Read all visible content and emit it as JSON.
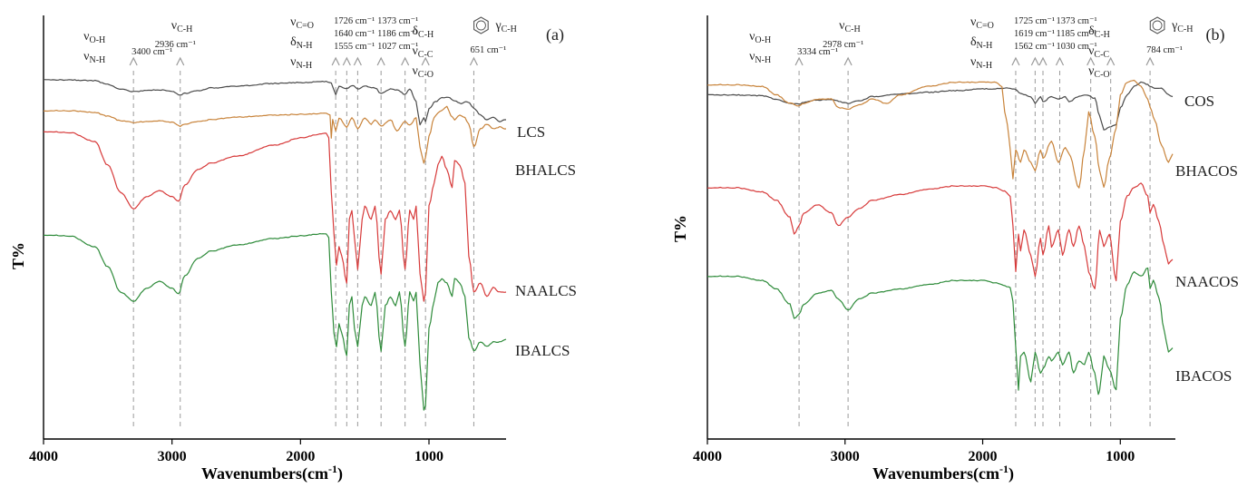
{
  "chart_data": [
    {
      "type": "line",
      "panel_label": "(a)",
      "xlabel": "Wavenumbers(cm",
      "xlabel_sup": "-1",
      "xlabel_close": ")",
      "ylabel": "T%",
      "xlim": [
        4000,
        400
      ],
      "xticks": [
        "4000",
        "3000",
        "2000",
        "1000"
      ],
      "xtick_values": [
        4000,
        3000,
        2000,
        1000
      ],
      "grid": false,
      "series": [
        {
          "name": "LCS",
          "color": "#4a4a4a",
          "x": [
            4000,
            3800,
            3600,
            3500,
            3400,
            3300,
            3200,
            3100,
            3000,
            2936,
            2900,
            2800,
            2700,
            2500,
            2200,
            2000,
            1800,
            1760,
            1726,
            1700,
            1640,
            1600,
            1555,
            1500,
            1420,
            1373,
            1300,
            1250,
            1186,
            1150,
            1100,
            1070,
            1040,
            1027,
            1000,
            950,
            900,
            850,
            800,
            750,
            700,
            651,
            600,
            550,
            500,
            450,
            400
          ],
          "y": [
            -6,
            -6,
            -7,
            -11,
            -16,
            -19,
            -18,
            -17,
            -19,
            -23,
            -21,
            -18,
            -15,
            -13,
            -10,
            -9,
            -8,
            -9,
            -22,
            -13,
            -16,
            -12,
            -16,
            -13,
            -15,
            -21,
            -16,
            -17,
            -22,
            -16,
            -30,
            -56,
            -48,
            -52,
            -38,
            -30,
            -26,
            -25,
            -29,
            -32,
            -30,
            -37,
            -45,
            -50,
            -47,
            -52,
            -50
          ]
        },
        {
          "name": "BHALCS",
          "color": "#c8833a",
          "x": [
            4000,
            3800,
            3600,
            3500,
            3400,
            3300,
            3200,
            3100,
            3000,
            2936,
            2900,
            2800,
            2700,
            2500,
            2200,
            2000,
            1800,
            1770,
            1760,
            1750,
            1726,
            1700,
            1640,
            1600,
            1555,
            1500,
            1450,
            1420,
            1373,
            1300,
            1250,
            1186,
            1150,
            1100,
            1070,
            1040,
            1027,
            1000,
            960,
            930,
            900,
            860,
            830,
            800,
            760,
            720,
            690,
            651,
            600,
            550,
            500,
            450,
            400
          ],
          "y": [
            -40,
            -40,
            -42,
            -46,
            -51,
            -53,
            -52,
            -51,
            -53,
            -57,
            -55,
            -52,
            -50,
            -47,
            -45,
            -44,
            -43,
            -45,
            -70,
            -50,
            -62,
            -48,
            -58,
            -48,
            -60,
            -48,
            -55,
            -50,
            -57,
            -50,
            -62,
            -52,
            -56,
            -48,
            -80,
            -98,
            -92,
            -68,
            -48,
            -42,
            -40,
            -35,
            -45,
            -50,
            -45,
            -48,
            -55,
            -80,
            -60,
            -55,
            -60,
            -58,
            -60
          ]
        },
        {
          "name": "NAALCS",
          "color": "#d73a3a",
          "x": [
            4000,
            3800,
            3600,
            3500,
            3400,
            3300,
            3200,
            3100,
            3000,
            2950,
            2900,
            2800,
            2700,
            2500,
            2200,
            2000,
            1850,
            1800,
            1780,
            1760,
            1740,
            1720,
            1700,
            1680,
            1640,
            1620,
            1600,
            1580,
            1555,
            1520,
            1500,
            1450,
            1420,
            1373,
            1340,
            1300,
            1260,
            1230,
            1186,
            1150,
            1120,
            1100,
            1070,
            1040,
            1027,
            1000,
            960,
            930,
            900,
            860,
            820,
            800,
            760,
            720,
            690,
            651,
            600,
            550,
            500,
            450,
            400
          ],
          "y": [
            -63,
            -64,
            -74,
            -100,
            -130,
            -148,
            -135,
            -128,
            -135,
            -140,
            -122,
            -105,
            -98,
            -90,
            -78,
            -70,
            -66,
            -65,
            -70,
            -130,
            -175,
            -210,
            -190,
            -200,
            -230,
            -160,
            -150,
            -180,
            -215,
            -160,
            -145,
            -160,
            -145,
            -220,
            -160,
            -150,
            -160,
            -150,
            -215,
            -150,
            -160,
            -145,
            -220,
            -250,
            -240,
            -145,
            -120,
            -100,
            -90,
            -105,
            -125,
            -95,
            -100,
            -120,
            -200,
            -240,
            -230,
            -245,
            -235,
            -240,
            -240
          ]
        },
        {
          "name": "IBALCS",
          "color": "#2e8b3a",
          "x": [
            4000,
            3800,
            3600,
            3500,
            3400,
            3300,
            3200,
            3100,
            3000,
            2950,
            2900,
            2800,
            2700,
            2500,
            2200,
            2000,
            1850,
            1800,
            1780,
            1760,
            1740,
            1720,
            1700,
            1680,
            1640,
            1620,
            1600,
            1580,
            1555,
            1520,
            1500,
            1450,
            1420,
            1373,
            1340,
            1300,
            1260,
            1230,
            1186,
            1150,
            1120,
            1100,
            1070,
            1040,
            1027,
            1000,
            960,
            930,
            900,
            860,
            820,
            800,
            760,
            720,
            690,
            651,
            600,
            550,
            500,
            450,
            400
          ],
          "y": [
            -177,
            -178,
            -190,
            -212,
            -240,
            -250,
            -236,
            -228,
            -236,
            -242,
            -222,
            -203,
            -195,
            -188,
            -181,
            -178,
            -176,
            -176,
            -180,
            -240,
            -285,
            -300,
            -275,
            -285,
            -310,
            -255,
            -245,
            -280,
            -300,
            -255,
            -245,
            -255,
            -240,
            -305,
            -255,
            -245,
            -255,
            -240,
            -300,
            -240,
            -250,
            -240,
            -320,
            -370,
            -365,
            -280,
            -250,
            -230,
            -225,
            -230,
            -245,
            -225,
            -230,
            -245,
            -290,
            -305,
            -295,
            -300,
            -295,
            -295,
            -292
          ]
        }
      ],
      "annotations": [
        {
          "x": 3300,
          "lines": [
            "νO-H",
            "νN-H"
          ],
          "wn": "3400 cm⁻¹",
          "left_labels": true
        },
        {
          "x": 2936,
          "lines": [
            "νC-H"
          ],
          "wn": "2936 cm⁻¹"
        },
        {
          "x": 1726,
          "lines": [
            "νC=O",
            "δN-H",
            "νN-H"
          ],
          "wn_block": [
            "1726 cm⁻¹",
            "1640 cm⁻¹",
            "1555 cm⁻¹"
          ]
        },
        {
          "x": 1640
        },
        {
          "x": 1555
        },
        {
          "x": 1373,
          "wn_block": [
            "1373 cm⁻¹",
            "1186 cm⁻¹",
            "1027 cm⁻¹"
          ]
        },
        {
          "x": 1186
        },
        {
          "x": 1027
        },
        {
          "x": 651,
          "lines": [
            "δC-H",
            "νC-C",
            "νC-O"
          ],
          "ring": true,
          "gamma": "γC-H",
          "wn": "651 cm⁻¹"
        }
      ]
    },
    {
      "type": "line",
      "panel_label": "(b)",
      "xlabel": "Wavenumbers(cm",
      "xlabel_sup": "-1",
      "xlabel_close": ")",
      "ylabel": "T%",
      "xlim": [
        4000,
        600
      ],
      "xticks": [
        "4000",
        "3000",
        "2000",
        "1000"
      ],
      "xtick_values": [
        4000,
        3000,
        2000,
        1000
      ],
      "grid": false,
      "series": [
        {
          "name": "COS",
          "color": "#4a4a4a",
          "x": [
            4000,
            3800,
            3600,
            3500,
            3400,
            3334,
            3300,
            3200,
            3100,
            2978,
            2900,
            2800,
            2600,
            2400,
            2200,
            2000,
            1800,
            1760,
            1725,
            1700,
            1650,
            1619,
            1580,
            1562,
            1500,
            1450,
            1400,
            1373,
            1300,
            1250,
            1185,
            1150,
            1120,
            1080,
            1030,
            1000,
            950,
            900,
            850,
            800,
            784,
            750,
            700,
            650,
            620
          ],
          "y": [
            -20,
            -20,
            -21,
            -25,
            -30,
            -31,
            -29,
            -26,
            -26,
            -30,
            -27,
            -22,
            -19,
            -17,
            -15,
            -13,
            -12,
            -14,
            -18,
            -20,
            -22,
            -30,
            -22,
            -28,
            -22,
            -25,
            -22,
            -28,
            -22,
            -20,
            -24,
            -45,
            -62,
            -58,
            -55,
            -35,
            -20,
            -10,
            -5,
            -8,
            -10,
            -12,
            -12,
            -20,
            -22
          ]
        },
        {
          "name": "BHACOS",
          "color": "#c8833a",
          "x": [
            4000,
            3800,
            3600,
            3500,
            3400,
            3334,
            3300,
            3200,
            3100,
            3050,
            2978,
            2900,
            2800,
            2700,
            2600,
            2400,
            2200,
            2000,
            1900,
            1860,
            1840,
            1820,
            1800,
            1780,
            1760,
            1725,
            1700,
            1650,
            1619,
            1580,
            1562,
            1500,
            1450,
            1400,
            1373,
            1300,
            1260,
            1230,
            1185,
            1150,
            1120,
            1080,
            1030,
            1000,
            950,
            900,
            850,
            800,
            784,
            750,
            700,
            650,
            620
          ],
          "y": [
            -8,
            -8,
            -10,
            -20,
            -30,
            -33,
            -30,
            -25,
            -25,
            -35,
            -37,
            -32,
            -25,
            -30,
            -20,
            -10,
            -5,
            -5,
            -5,
            -10,
            -40,
            -55,
            -85,
            -120,
            -85,
            -100,
            -85,
            -100,
            -110,
            -85,
            -95,
            -75,
            -100,
            -82,
            -90,
            -130,
            -85,
            -40,
            -70,
            -110,
            -130,
            -95,
            -60,
            -20,
            -5,
            -3,
            -10,
            -25,
            -35,
            -50,
            -80,
            -100,
            -90
          ]
        },
        {
          "name": "NAACOS",
          "color": "#d73a3a",
          "x": [
            4000,
            3800,
            3600,
            3500,
            3400,
            3370,
            3334,
            3300,
            3200,
            3100,
            3050,
            2978,
            2900,
            2800,
            2600,
            2400,
            2200,
            2000,
            1900,
            1840,
            1800,
            1780,
            1760,
            1740,
            1725,
            1700,
            1650,
            1619,
            1580,
            1562,
            1520,
            1500,
            1450,
            1420,
            1373,
            1340,
            1300,
            1260,
            1230,
            1185,
            1150,
            1120,
            1080,
            1030,
            1000,
            950,
            900,
            850,
            800,
            784,
            760,
            720,
            680,
            650,
            620
          ],
          "y": [
            -130,
            -130,
            -135,
            -145,
            -165,
            -185,
            -175,
            -160,
            -150,
            -160,
            -175,
            -165,
            -155,
            -145,
            -138,
            -132,
            -128,
            -128,
            -130,
            -134,
            -140,
            -175,
            -230,
            -185,
            -205,
            -180,
            -210,
            -235,
            -190,
            -210,
            -175,
            -200,
            -180,
            -210,
            -180,
            -200,
            -175,
            -200,
            -230,
            -250,
            -180,
            -200,
            -185,
            -240,
            -170,
            -140,
            -130,
            -125,
            -140,
            -160,
            -150,
            -170,
            -200,
            -220,
            -215
          ]
        },
        {
          "name": "IBACOS",
          "color": "#2e8b3a",
          "x": [
            4000,
            3800,
            3600,
            3500,
            3400,
            3370,
            3334,
            3300,
            3200,
            3100,
            3050,
            2978,
            2900,
            2800,
            2600,
            2400,
            2200,
            2000,
            1900,
            1800,
            1780,
            1760,
            1740,
            1725,
            1700,
            1650,
            1619,
            1580,
            1562,
            1520,
            1500,
            1450,
            1420,
            1373,
            1340,
            1300,
            1260,
            1230,
            1185,
            1160,
            1150,
            1120,
            1080,
            1030,
            1000,
            950,
            900,
            850,
            800,
            784,
            760,
            720,
            680,
            650,
            620
          ],
          "y": [
            -235,
            -235,
            -240,
            -250,
            -268,
            -285,
            -280,
            -268,
            -255,
            -252,
            -262,
            -275,
            -262,
            -255,
            -250,
            -245,
            -240,
            -240,
            -243,
            -248,
            -265,
            -320,
            -370,
            -330,
            -325,
            -360,
            -325,
            -350,
            -345,
            -330,
            -335,
            -325,
            -340,
            -325,
            -350,
            -335,
            -340,
            -325,
            -350,
            -375,
            -370,
            -330,
            -345,
            -370,
            -285,
            -245,
            -230,
            -235,
            -225,
            -250,
            -240,
            -260,
            -300,
            -325,
            -320
          ]
        }
      ],
      "annotations": [
        {
          "x": 3334,
          "lines": [
            "νO-H",
            "νN-H"
          ],
          "wn": "3334 cm⁻¹",
          "left_labels": true
        },
        {
          "x": 2978,
          "lines": [
            "νC-H"
          ],
          "wn": "2978 cm⁻¹"
        },
        {
          "x": 1760,
          "lines": [
            "νC=O",
            "δN-H",
            "νN-H"
          ],
          "wn_block": [
            "1725 cm⁻¹",
            "1619 cm⁻¹",
            "1562 cm⁻¹"
          ]
        },
        {
          "x": 1619
        },
        {
          "x": 1562
        },
        {
          "x": 1440,
          "wn_block": [
            "1373 cm⁻¹",
            "1185 cm⁻¹",
            "1030 cm⁻¹"
          ]
        },
        {
          "x": 1215
        },
        {
          "x": 1070
        },
        {
          "x": 784,
          "lines": [
            "δC-H",
            "νC-C",
            "νC-O"
          ],
          "ring": true,
          "gamma": "γC-H",
          "wn": "784 cm⁻¹"
        }
      ]
    }
  ]
}
